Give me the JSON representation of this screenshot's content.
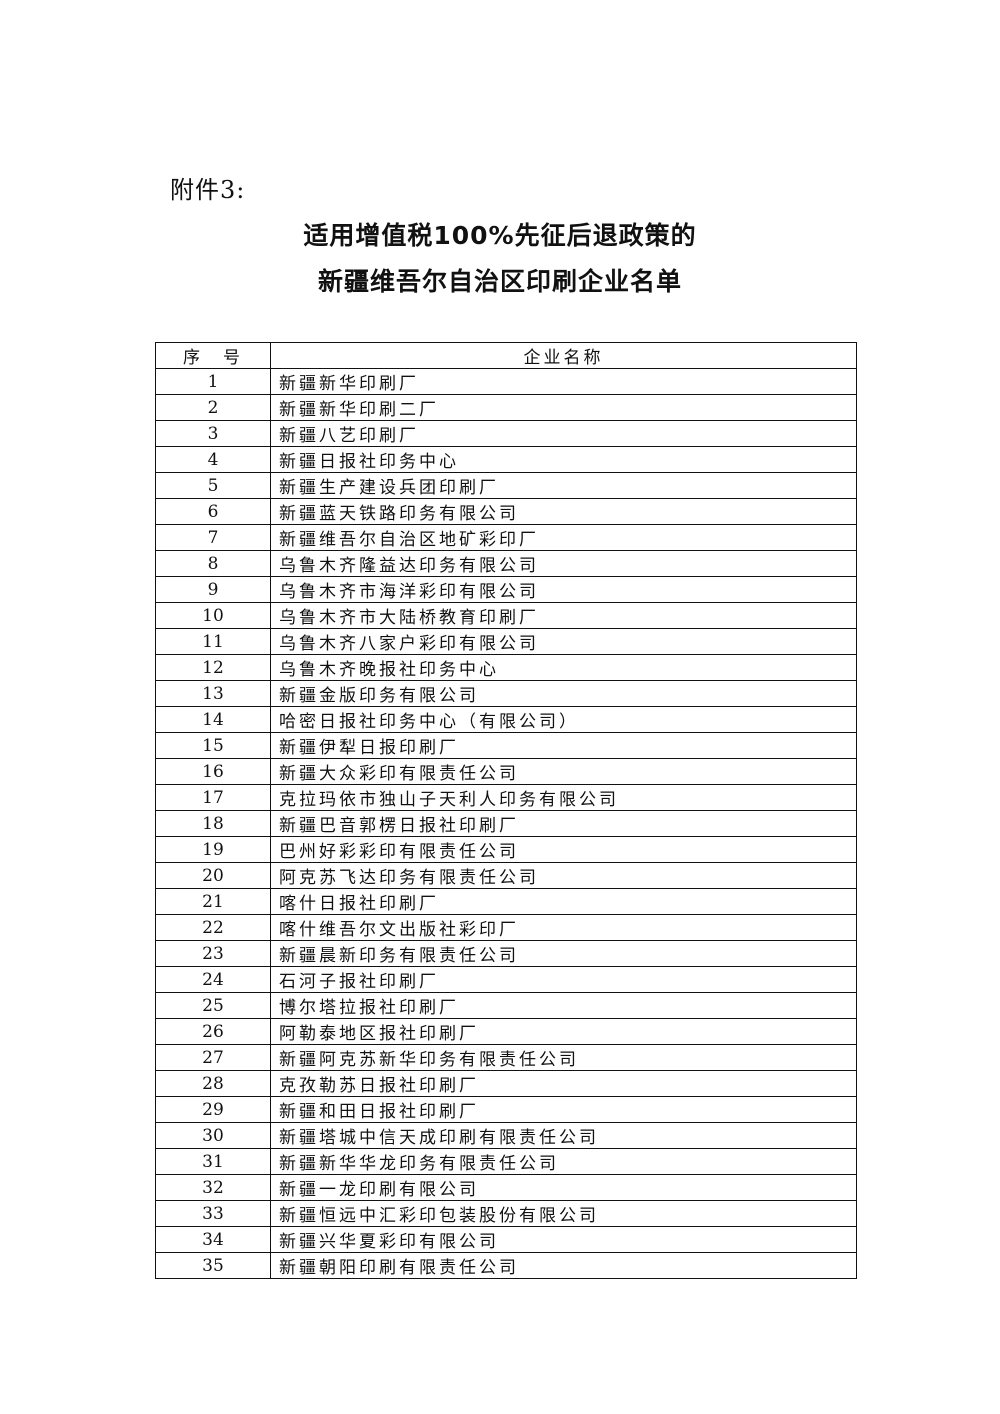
{
  "attachment_label": "附件3:",
  "title_line1": "适用增值税100%先征后退政策的",
  "title_line2": "新疆维吾尔自治区印刷企业名单",
  "table": {
    "headers": [
      "序　号",
      "企业名称"
    ],
    "rows": [
      [
        "1",
        "新疆新华印刷厂"
      ],
      [
        "2",
        "新疆新华印刷二厂"
      ],
      [
        "3",
        "新疆八艺印刷厂"
      ],
      [
        "4",
        "新疆日报社印务中心"
      ],
      [
        "5",
        "新疆生产建设兵团印刷厂"
      ],
      [
        "6",
        "新疆蓝天铁路印务有限公司"
      ],
      [
        "7",
        "新疆维吾尔自治区地矿彩印厂"
      ],
      [
        "8",
        "乌鲁木齐隆益达印务有限公司"
      ],
      [
        "9",
        "乌鲁木齐市海洋彩印有限公司"
      ],
      [
        "10",
        "乌鲁木齐市大陆桥教育印刷厂"
      ],
      [
        "11",
        "乌鲁木齐八家户彩印有限公司"
      ],
      [
        "12",
        "乌鲁木齐晚报社印务中心"
      ],
      [
        "13",
        "新疆金版印务有限公司"
      ],
      [
        "14",
        "哈密日报社印务中心（有限公司）"
      ],
      [
        "15",
        "新疆伊犁日报印刷厂"
      ],
      [
        "16",
        "新疆大众彩印有限责任公司"
      ],
      [
        "17",
        "克拉玛依市独山子天利人印务有限公司"
      ],
      [
        "18",
        "新疆巴音郭楞日报社印刷厂"
      ],
      [
        "19",
        "巴州好彩彩印有限责任公司"
      ],
      [
        "20",
        "阿克苏飞达印务有限责任公司"
      ],
      [
        "21",
        "喀什日报社印刷厂"
      ],
      [
        "22",
        "喀什维吾尔文出版社彩印厂"
      ],
      [
        "23",
        "新疆晨新印务有限责任公司"
      ],
      [
        "24",
        "石河子报社印刷厂"
      ],
      [
        "25",
        "博尔塔拉报社印刷厂"
      ],
      [
        "26",
        "阿勒泰地区报社印刷厂"
      ],
      [
        "27",
        "新疆阿克苏新华印务有限责任公司"
      ],
      [
        "28",
        "克孜勒苏日报社印刷厂"
      ],
      [
        "29",
        "新疆和田日报社印刷厂"
      ],
      [
        "30",
        "新疆塔城中信天成印刷有限责任公司"
      ],
      [
        "31",
        "新疆新华华龙印务有限责任公司"
      ],
      [
        "32",
        "新疆一龙印刷有限公司"
      ],
      [
        "33",
        "新疆恒远中汇彩印包装股份有限公司"
      ],
      [
        "34",
        "新疆兴华夏彩印有限公司"
      ],
      [
        "35",
        "新疆朝阳印刷有限责任公司"
      ]
    ]
  }
}
